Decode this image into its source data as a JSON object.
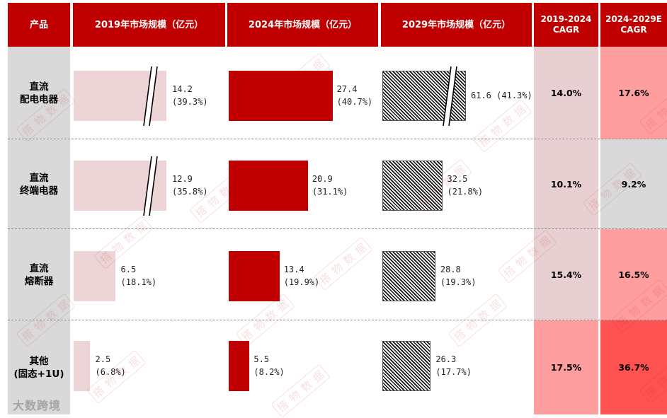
{
  "headers": {
    "product": "产品",
    "y2019": "2019年市场规模（亿元）",
    "y2024": "2024年市场规模（亿元）",
    "y2029": "2029年市场规模（亿元）",
    "cagr1_line1": "2019-2024",
    "cagr1_line2": "CAGR",
    "cagr2_line1": "2024-2029E",
    "cagr2_line2": "CAGR"
  },
  "rows": [
    {
      "name_line1": "直流",
      "name_line2": "配电电器"
    },
    {
      "name_line1": "直流",
      "name_line2": "终端电器"
    },
    {
      "name_line1": "直流",
      "name_line2": "熔断器"
    },
    {
      "name_line1": "其他",
      "name_line2": "(固态+1U)"
    }
  ],
  "chart_data": {
    "type": "bar",
    "categories": [
      "直流配电电器",
      "直流终端电器",
      "直流熔断器",
      "其他(固态+1U)"
    ],
    "series": [
      {
        "name": "2019年市场规模（亿元）",
        "values": [
          14.2,
          12.9,
          6.5,
          2.5
        ],
        "shares": [
          "(39.3%)",
          "(35.8%)",
          "(18.1%)",
          "(6.8%)"
        ],
        "broken": [
          true,
          true,
          false,
          false
        ]
      },
      {
        "name": "2024年市场规模（亿元）",
        "values": [
          27.4,
          20.9,
          13.4,
          5.5
        ],
        "shares": [
          "(40.7%)",
          "(31.1%)",
          "(19.9%)",
          "(8.2%)"
        ],
        "broken": [
          false,
          false,
          false,
          false
        ]
      },
      {
        "name": "2029年市场规模（亿元）",
        "values": [
          61.6,
          32.5,
          28.8,
          26.3
        ],
        "shares": [
          "(41.3%)",
          "(21.8%)",
          "(19.3%)",
          "(17.7%)"
        ],
        "broken": [
          true,
          false,
          false,
          false
        ]
      }
    ],
    "cagr": [
      {
        "name": "2019-2024 CAGR",
        "values": [
          "14.0%",
          "10.1%",
          "15.4%",
          "17.5%"
        ]
      },
      {
        "name": "2024-2029E CAGR",
        "values": [
          "17.6%",
          "9.2%",
          "16.5%",
          "36.7%"
        ]
      }
    ]
  },
  "colors": {
    "header": "#c00000",
    "bar_2019": "#ecd4d7",
    "bar_2024": "#c00000",
    "cagr1": [
      "#e8cfd2",
      "#e8cfd2",
      "#e8cfd2",
      "#ff9e9e"
    ],
    "cagr2": [
      "#ff9e9e",
      "#d9d9d9",
      "#ff9e9e",
      "#ff5252"
    ]
  },
  "watermark": "搭 物 数 据",
  "logo": "大数跨境"
}
